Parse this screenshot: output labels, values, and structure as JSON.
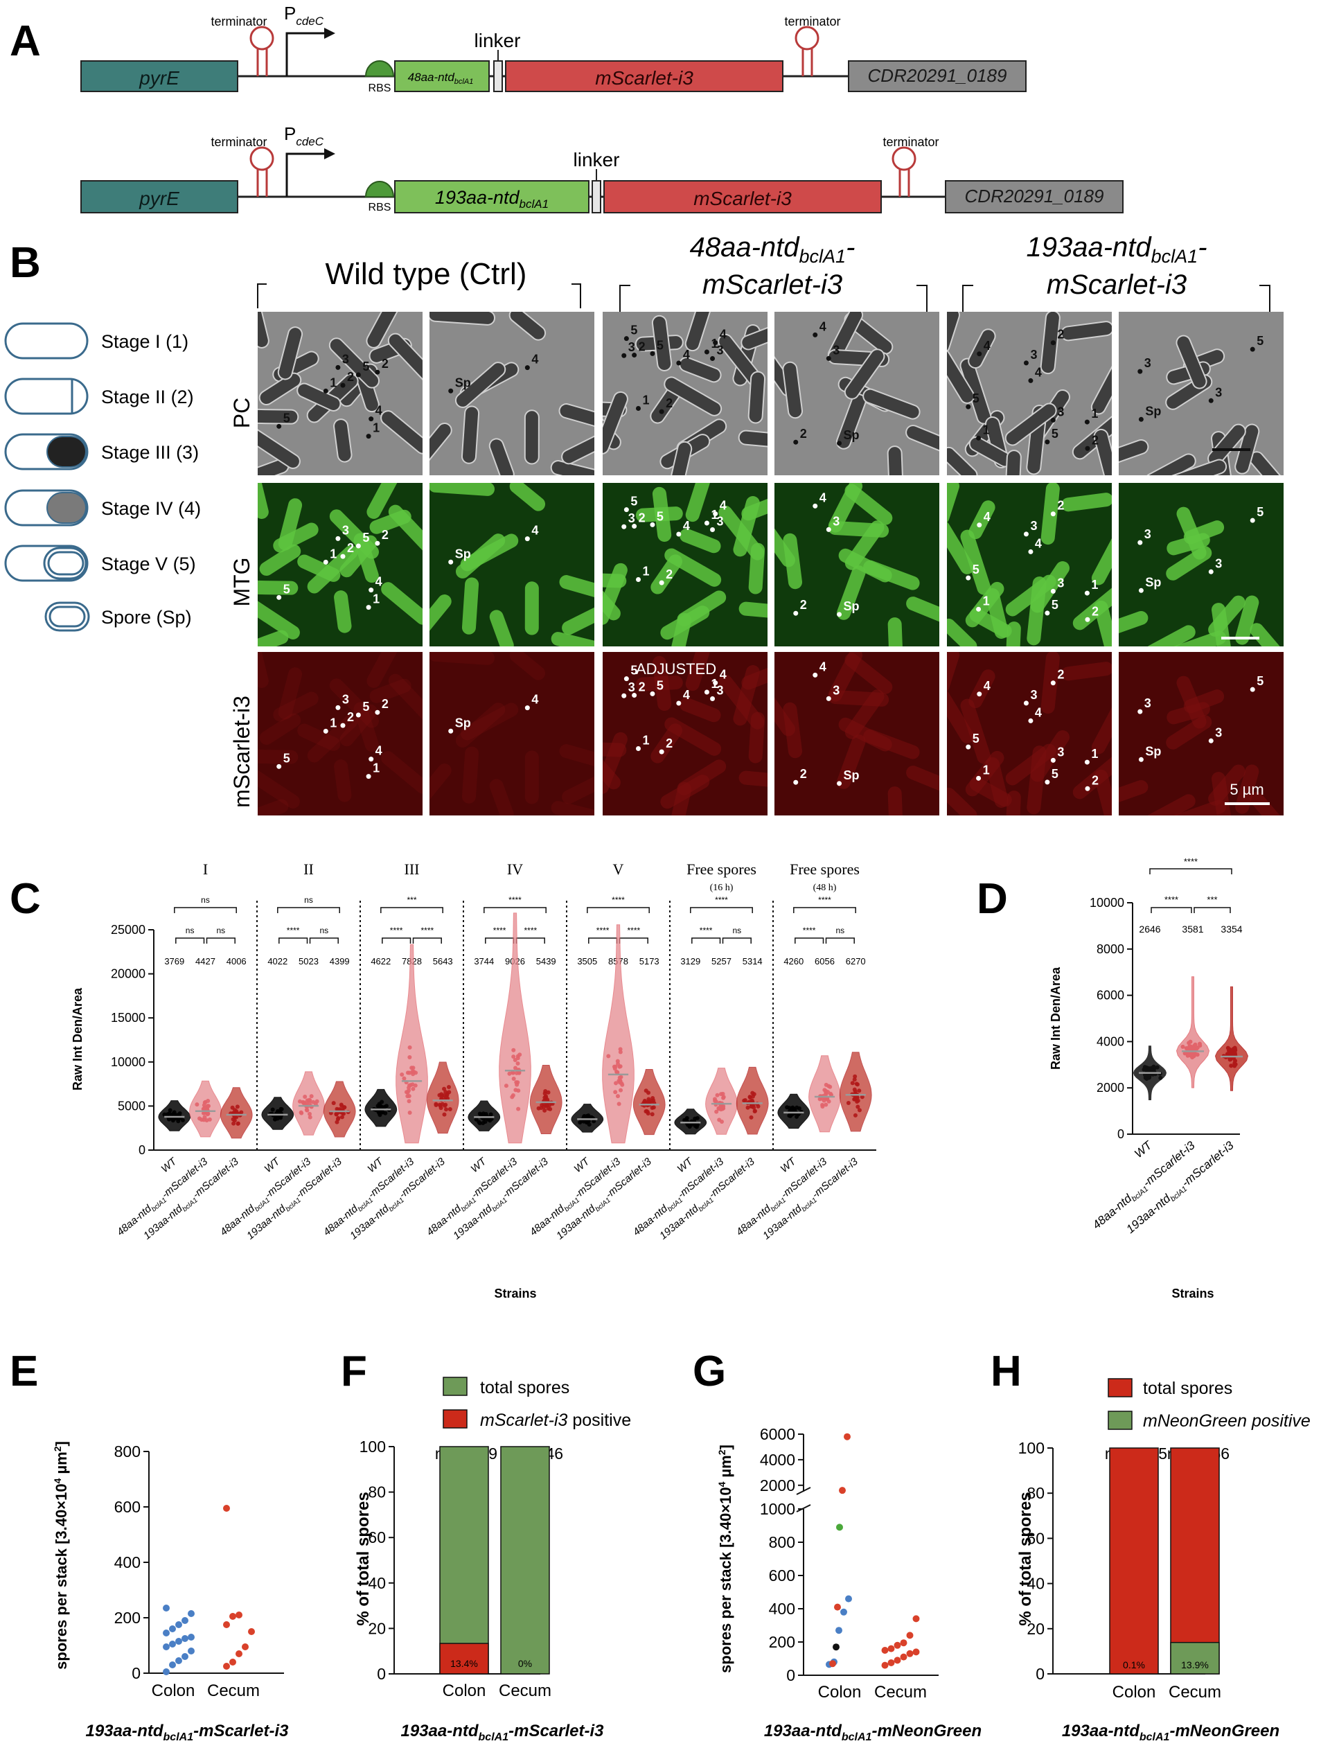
{
  "panels": {
    "A": "A",
    "B": "B",
    "C": "C",
    "D": "D",
    "E": "E",
    "F": "F",
    "G": "G",
    "H": "H"
  },
  "panel_a": {
    "construct1": {
      "pyrE": "pyrE",
      "terminator_left": "terminator",
      "promoter": "P",
      "promoter_sub": "cdeC",
      "rbs": "RBS",
      "ntd": "48aa-ntd",
      "ntd_sub": "bclA1",
      "linker": "linker",
      "mscarlet": "mScarlet-i3",
      "terminator_right": "terminator",
      "cdr": "CDR20291_0189"
    },
    "construct2": {
      "pyrE": "pyrE",
      "terminator_left": "terminator",
      "promoter": "P",
      "promoter_sub": "cdeC",
      "rbs": "RBS",
      "ntd": "193aa-ntd",
      "ntd_sub": "bclA1",
      "linker": "linker",
      "mscarlet": "mScarlet-i3",
      "terminator_right": "terminator",
      "cdr": "CDR20291_0189"
    }
  },
  "panel_b": {
    "group_wt": "Wild type (Ctrl)",
    "group_48_line1": "48aa-ntd",
    "group_48_sub": "bclA1",
    "group_48_line2": "mScarlet-i3",
    "group_193_line1": "193aa-ntd",
    "group_193_sub": "bclA1",
    "group_193_line2": "mScarlet-i3",
    "row_pc": "PC",
    "row_mtg": "MTG",
    "row_msc": "mScarlet-i3",
    "adjusted": "ADJUSTED",
    "scale": "5 µm",
    "stages": [
      "Stage I (1)",
      "Stage II (2)",
      "Stage III (3)",
      "Stage IV (4)",
      "Stage V (5)",
      "Spore (Sp)"
    ],
    "colors": {
      "pc": "#8a8a8a",
      "mtg": "#3fae2a",
      "msc": "#5a0a0a"
    }
  },
  "panel_c": {
    "ylabel": "Raw Int Den/Area",
    "xlabel": "Strains",
    "yticks": [
      "0",
      "5000",
      "10000",
      "15000",
      "20000",
      "25000"
    ],
    "strain_labels": [
      "WT",
      "48aa-ntd",
      "193aa-ntd"
    ],
    "strain_sub": "bclA1",
    "strain_suffix": "-mScarlet-i3",
    "groups": [
      {
        "label": "I",
        "sub": "",
        "top": "ns",
        "left": "ns",
        "right": "ns",
        "means": [
          "3769",
          "4427",
          "4006"
        ]
      },
      {
        "label": "II",
        "sub": "",
        "top": "ns",
        "left": "****",
        "right": "ns",
        "means": [
          "4022",
          "5023",
          "4399"
        ]
      },
      {
        "label": "III",
        "sub": "",
        "top": "***",
        "left": "****",
        "right": "****",
        "means": [
          "4622",
          "7828",
          "5643"
        ]
      },
      {
        "label": "IV",
        "sub": "",
        "top": "****",
        "left": "****",
        "right": "****",
        "means": [
          "3744",
          "9026",
          "5439"
        ]
      },
      {
        "label": "V",
        "sub": "",
        "top": "****",
        "left": "****",
        "right": "****",
        "means": [
          "3505",
          "8578",
          "5173"
        ]
      },
      {
        "label": "Free spores",
        "sub": "(16 h)",
        "top": "****",
        "left": "****",
        "right": "ns",
        "means": [
          "3129",
          "5257",
          "5314"
        ]
      },
      {
        "label": "Free spores",
        "sub": "(48 h)",
        "top": "****",
        "left": "****",
        "right": "ns",
        "means": [
          "4260",
          "6056",
          "6270"
        ]
      }
    ]
  },
  "panel_d": {
    "ylabel": "Raw Int Den/Area",
    "xlabel": "Strains",
    "yticks": [
      "0",
      "2000",
      "4000",
      "6000",
      "8000",
      "10000"
    ],
    "top": "****",
    "left": "****",
    "right": "***",
    "means": [
      "2646",
      "3581",
      "3354"
    ]
  },
  "panel_e": {
    "ylabel": "spores per stack [3.40×10",
    "ylabel_sup": "4",
    "ylabel_end": " µm",
    "ylabel_sup2": "2",
    "ylabel_close": "]",
    "yticks": [
      "0",
      "200",
      "400",
      "600",
      "800"
    ],
    "cats": [
      "Colon",
      "Cecum"
    ],
    "caption": "193aa-ntd",
    "caption_sub": "bclA1",
    "caption_end": "-mScarlet-i3"
  },
  "panel_f": {
    "legend1": "total spores",
    "legend2": "mScarlet-i3",
    "legend2_end": " positive",
    "ylabel": "% of total spores",
    "yticks": [
      "0",
      "20",
      "40",
      "60",
      "80",
      "100"
    ],
    "cats": [
      "Colon",
      "Cecum"
    ],
    "n1": "n = 2389",
    "n2": "n = 1346",
    "pct1": "13.4%",
    "pct2": "0%",
    "caption": "193aa-ntd",
    "caption_sub": "bclA1",
    "caption_end": "-mScarlet-i3"
  },
  "panel_g": {
    "ylabel": "spores per stack [3.40×10",
    "ylabel_sup": "4",
    "ylabel_end": " µm",
    "ylabel_sup2": "2",
    "ylabel_close": "]",
    "yticks_low": [
      "0",
      "200",
      "400",
      "600",
      "800",
      "1000"
    ],
    "yticks_high": [
      "2000",
      "4000",
      "6000"
    ],
    "cats": [
      "Colon",
      "Cecum"
    ],
    "caption": "193aa-ntd",
    "caption_sub": "bclA1",
    "caption_end": "-mNeonGreen"
  },
  "panel_h": {
    "legend1": "total spores",
    "legend2": "mNeonGreen positive",
    "ylabel": "% of total spores",
    "yticks": [
      "0",
      "20",
      "40",
      "60",
      "80",
      "100"
    ],
    "cats": [
      "Colon",
      "Cecum"
    ],
    "n1": "n = 9755",
    "n2": "n = 1766",
    "pct1": "0.1%",
    "pct2": "13.9%",
    "caption": "193aa-ntd",
    "caption_sub": "bclA1",
    "caption_end": "-mNeonGreen"
  },
  "chart_data": [
    {
      "panel": "C",
      "type": "scatter",
      "ylabel": "Raw Int Den/Area",
      "xlabel": "Strains",
      "ylim": [
        0,
        25000
      ],
      "categories": [
        "I",
        "II",
        "III",
        "IV",
        "V",
        "Free spores (16 h)",
        "Free spores (48 h)"
      ],
      "series": [
        {
          "name": "WT",
          "values": [
            3769,
            4022,
            4622,
            3744,
            3505,
            3129,
            4260
          ],
          "color": "#000000"
        },
        {
          "name": "48aa-ntdbclA1-mScarlet-i3",
          "values": [
            4427,
            5023,
            7828,
            9026,
            8578,
            5257,
            6056
          ],
          "color": "#e2646b"
        },
        {
          "name": "193aa-ntdbclA1-mScarlet-i3",
          "values": [
            4006,
            4399,
            5643,
            5439,
            5173,
            5314,
            6270
          ],
          "color": "#b01818"
        }
      ]
    },
    {
      "panel": "D",
      "type": "scatter",
      "ylabel": "Raw Int Den/Area",
      "xlabel": "Strains",
      "ylim": [
        0,
        10000
      ],
      "categories": [
        "WT",
        "48aa-ntdbclA1-mScarlet-i3",
        "193aa-ntdbclA1-mScarlet-i3"
      ],
      "values": [
        2646,
        3581,
        3354
      ]
    },
    {
      "panel": "E",
      "type": "scatter",
      "ylim": [
        0,
        800
      ],
      "categories": [
        "Colon",
        "Cecum"
      ],
      "series": [
        {
          "name": "Colon",
          "color": "#4a7fc5",
          "values": [
            5,
            30,
            45,
            60,
            80,
            95,
            105,
            115,
            125,
            130,
            145,
            160,
            175,
            190,
            215,
            235
          ]
        },
        {
          "name": "Cecum",
          "color": "#d9412a",
          "values": [
            25,
            40,
            70,
            95,
            150,
            175,
            205,
            210
          ]
        },
        {
          "name": "outlier",
          "color": "#d9412a",
          "values": [
            595
          ]
        }
      ]
    },
    {
      "panel": "F",
      "type": "bar",
      "ylim": [
        0,
        100
      ],
      "categories": [
        "Colon",
        "Cecum"
      ],
      "series": [
        {
          "name": "total spores",
          "values": [
            100,
            100
          ],
          "color": "#6e9a58"
        },
        {
          "name": "mScarlet-i3 positive",
          "values": [
            13.4,
            0
          ],
          "color": "#cc2a1a"
        }
      ]
    },
    {
      "panel": "G",
      "type": "scatter",
      "categories": [
        "Colon",
        "Cecum"
      ],
      "series": [
        {
          "name": "Colon blue",
          "color": "#4a7fc5",
          "values": [
            65,
            80,
            270,
            380,
            460
          ]
        },
        {
          "name": "Colon red",
          "color": "#d9412a",
          "values": [
            70,
            410,
            1600,
            5800
          ]
        },
        {
          "name": "Colon black",
          "color": "#111111",
          "values": [
            170
          ]
        },
        {
          "name": "Colon green",
          "color": "#4aa83a",
          "values": [
            890
          ]
        },
        {
          "name": "Cecum",
          "color": "#d9412a",
          "values": [
            60,
            75,
            90,
            110,
            130,
            140,
            150,
            160,
            180,
            195,
            240,
            340
          ]
        }
      ]
    },
    {
      "panel": "H",
      "type": "bar",
      "ylim": [
        0,
        100
      ],
      "categories": [
        "Colon",
        "Cecum"
      ],
      "series": [
        {
          "name": "total spores",
          "values": [
            100,
            100
          ],
          "color": "#cc2a1a"
        },
        {
          "name": "mNeonGreen positive",
          "values": [
            0.1,
            13.9
          ],
          "color": "#6e9a58"
        }
      ]
    }
  ]
}
